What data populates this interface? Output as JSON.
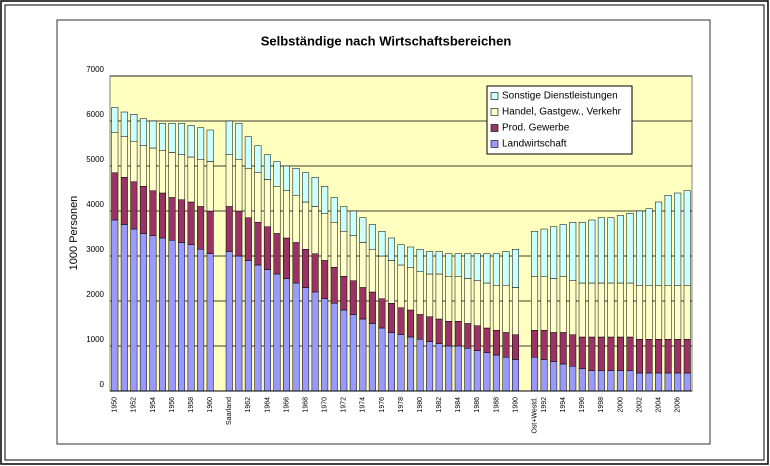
{
  "chart_data": {
    "type": "stacked_bar",
    "title": "Selbständige nach Wirtschaftsbereichen",
    "y_label": "1000 Personen",
    "categories": [
      "1950",
      null,
      "1952",
      null,
      "1954",
      null,
      "1956",
      null,
      "1958",
      null,
      "1960",
      null,
      "Saarland",
      null,
      "1962",
      null,
      "1964",
      null,
      "1966",
      null,
      "1968",
      null,
      "1970",
      null,
      "1972",
      null,
      "1974",
      null,
      "1976",
      null,
      "1978",
      null,
      "1980",
      null,
      "1982",
      null,
      "1984",
      null,
      "1986",
      null,
      "1988",
      null,
      "1990",
      null,
      "Ost+Westd.",
      "1992",
      null,
      "1994",
      null,
      "1996",
      null,
      "1998",
      null,
      "2000",
      null,
      "2002",
      null,
      "2004",
      null,
      "2006",
      null
    ],
    "series": [
      {
        "name": "Landwirtschaft",
        "color": "#9999ff",
        "values": [
          3800,
          3700,
          3600,
          3500,
          3450,
          3400,
          3350,
          3300,
          3250,
          3150,
          3050,
          null,
          3100,
          3000,
          2900,
          2800,
          2700,
          2600,
          2500,
          2400,
          2300,
          2200,
          2050,
          1950,
          1800,
          1700,
          1600,
          1500,
          1400,
          1300,
          1250,
          1200,
          1150,
          1100,
          1050,
          1000,
          1000,
          950,
          900,
          850,
          800,
          750,
          700,
          null,
          750,
          700,
          650,
          600,
          550,
          500,
          450,
          450,
          450,
          450,
          450,
          400,
          400,
          400,
          400,
          400,
          400
        ]
      },
      {
        "name": "Prod. Gewerbe",
        "color": "#993366",
        "values": [
          1050,
          1050,
          1050,
          1050,
          1000,
          1000,
          950,
          950,
          950,
          950,
          950,
          null,
          1000,
          1000,
          950,
          950,
          950,
          900,
          900,
          900,
          850,
          850,
          850,
          800,
          750,
          750,
          700,
          700,
          650,
          650,
          600,
          600,
          550,
          550,
          550,
          550,
          550,
          550,
          550,
          550,
          550,
          550,
          550,
          null,
          600,
          650,
          650,
          700,
          700,
          700,
          750,
          750,
          750,
          750,
          750,
          750,
          750,
          750,
          750,
          750,
          750
        ]
      },
      {
        "name": "Handel, Gastgew., Verkehr",
        "color": "#ffffcc",
        "values": [
          900,
          900,
          900,
          900,
          950,
          950,
          1000,
          1000,
          1000,
          1050,
          1100,
          null,
          1150,
          1150,
          1100,
          1100,
          1050,
          1050,
          1050,
          1050,
          1050,
          1050,
          1050,
          1000,
          1000,
          1000,
          1000,
          950,
          950,
          950,
          950,
          950,
          950,
          950,
          1000,
          1000,
          1000,
          1000,
          1000,
          1000,
          1000,
          1050,
          1050,
          null,
          1200,
          1200,
          1200,
          1250,
          1200,
          1200,
          1200,
          1200,
          1200,
          1200,
          1200,
          1200,
          1200,
          1200,
          1200,
          1200,
          1200
        ]
      },
      {
        "name": "Sonstige Dienstleistungen",
        "color": "#ccffff",
        "values": [
          550,
          550,
          600,
          600,
          600,
          600,
          650,
          700,
          700,
          700,
          700,
          null,
          750,
          800,
          700,
          600,
          550,
          550,
          550,
          600,
          650,
          650,
          600,
          550,
          550,
          550,
          550,
          550,
          550,
          500,
          450,
          450,
          500,
          500,
          500,
          500,
          500,
          550,
          600,
          650,
          700,
          750,
          850,
          null,
          1000,
          1050,
          1150,
          1150,
          1300,
          1350,
          1400,
          1450,
          1450,
          1500,
          1550,
          1650,
          1700,
          1850,
          2000,
          2050,
          2100
        ]
      }
    ],
    "ylim": [
      0,
      7000
    ],
    "yticks": [
      0,
      1000,
      2000,
      3000,
      4000,
      5000,
      6000,
      7000
    ],
    "grid": true,
    "plot_background": "#ffffc0",
    "legend": "top-right"
  }
}
